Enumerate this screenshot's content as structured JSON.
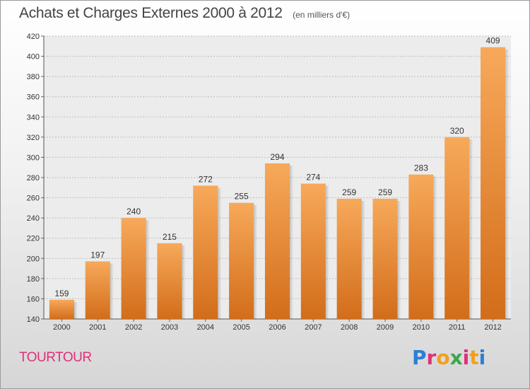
{
  "header": {
    "title": "Achats et Charges Externes 2000 à 2012",
    "subtitle": "(en milliers d'€)"
  },
  "footer": {
    "commune": "TOURTOUR",
    "brand": "Proxiti",
    "brand_colors": [
      "#2a7fd4",
      "#e0307a",
      "#f0a020",
      "#3aa84a",
      "#e0307a",
      "#f0a020",
      "#2a7fd4"
    ]
  },
  "chart_data": {
    "type": "bar",
    "title": "Achats et Charges Externes 2000 à 2012",
    "subtitle": "(en milliers d'€)",
    "categories": [
      "2000",
      "2001",
      "2002",
      "2003",
      "2004",
      "2005",
      "2006",
      "2007",
      "2008",
      "2009",
      "2010",
      "2011",
      "2012"
    ],
    "values": [
      159,
      197,
      240,
      215,
      272,
      255,
      294,
      274,
      259,
      259,
      283,
      320,
      409
    ],
    "ylim": [
      140,
      420
    ],
    "yticks": [
      140,
      160,
      180,
      200,
      220,
      240,
      260,
      280,
      300,
      320,
      340,
      360,
      380,
      400,
      420
    ],
    "grid": true,
    "bar_color_top": "#f7a95a",
    "bar_color_bottom": "#d26d1a"
  }
}
